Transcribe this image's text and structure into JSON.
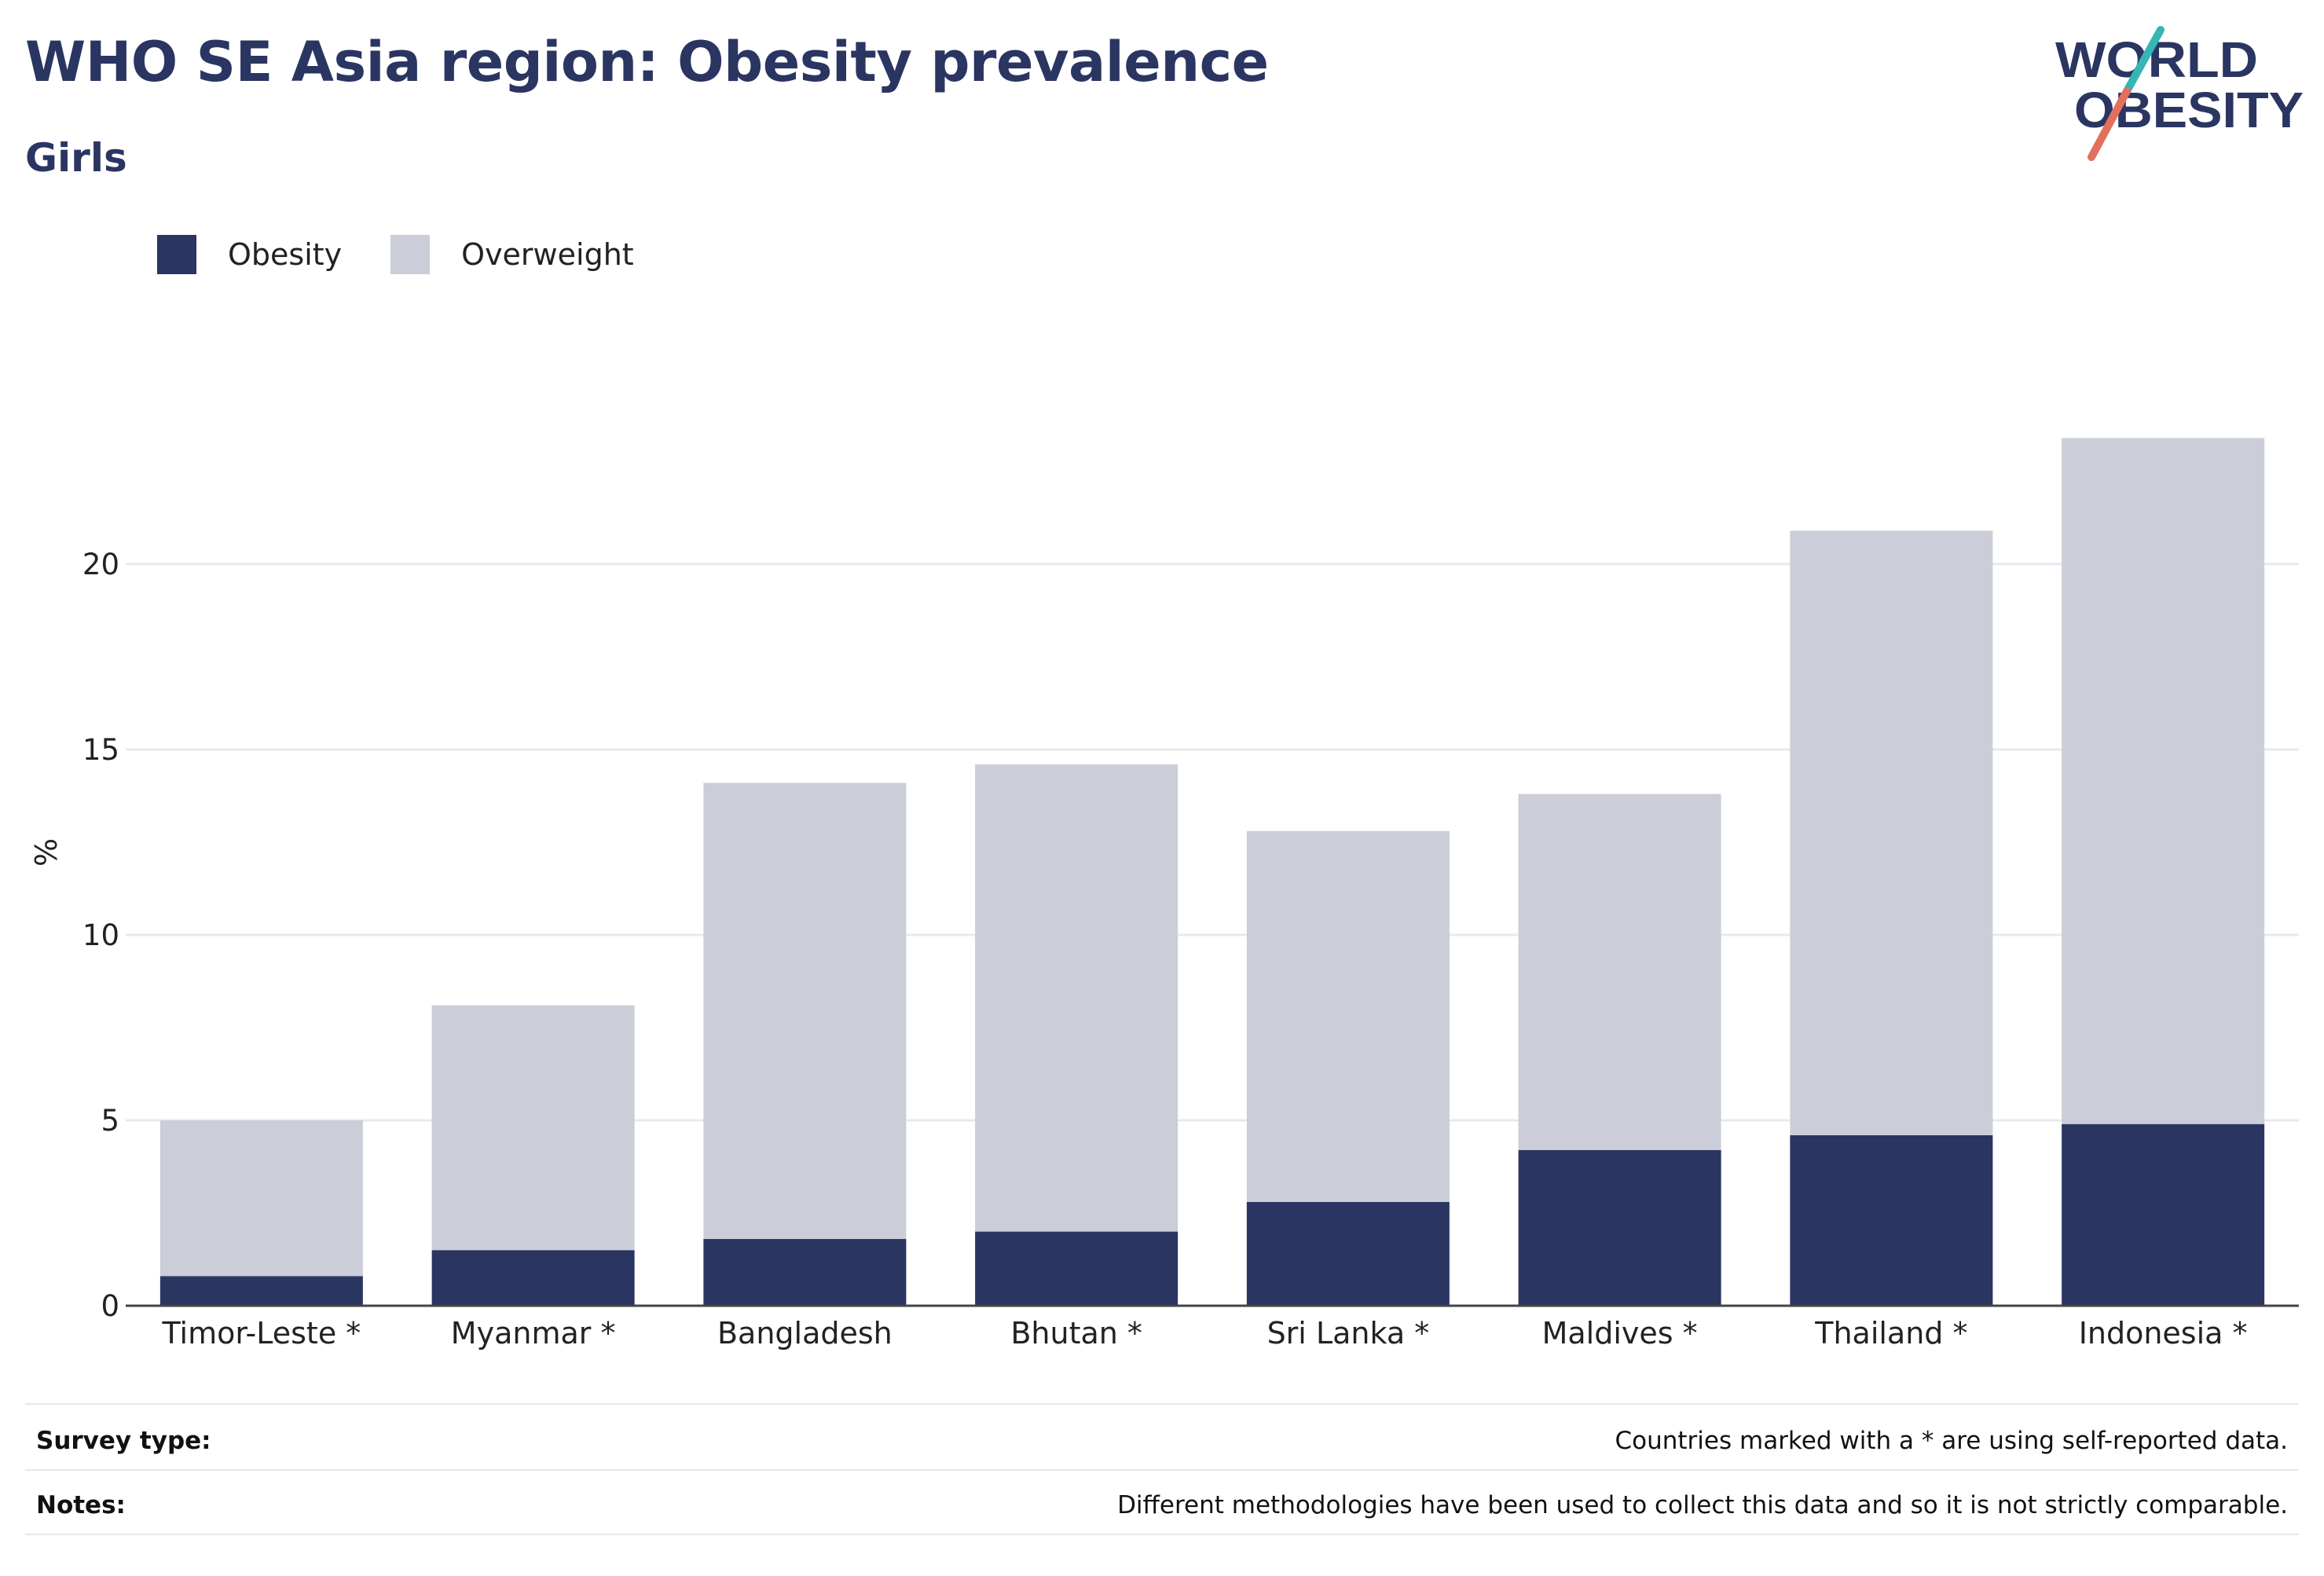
{
  "header": {
    "title": "WHO SE Asia region: Obesity prevalence",
    "subtitle": "Girls",
    "logo_line1": "WORLD",
    "logo_line2": "OBESITY"
  },
  "legend": [
    {
      "label": "Obesity",
      "color": "#2a3561"
    },
    {
      "label": "Overweight",
      "color": "#cbcdd8"
    }
  ],
  "chart_data": {
    "type": "bar",
    "stacked": true,
    "title": "WHO SE Asia region: Obesity prevalence",
    "subtitle": "Girls",
    "xlabel": "",
    "ylabel": "%",
    "ylim": [
      0,
      25
    ],
    "yticks": [
      0,
      5,
      10,
      15,
      20
    ],
    "grid": true,
    "legend_position": "top-left",
    "categories": [
      "Timor-Leste *",
      "Myanmar *",
      "Bangladesh",
      "Bhutan *",
      "Sri Lanka *",
      "Maldives *",
      "Thailand *",
      "Indonesia *"
    ],
    "series": [
      {
        "name": "Obesity",
        "color": "#2a3561",
        "values": [
          0.8,
          1.5,
          1.8,
          2.0,
          2.8,
          4.2,
          4.6,
          4.9
        ]
      },
      {
        "name": "Overweight",
        "color": "#cbcdd8",
        "values": [
          4.2,
          6.6,
          12.3,
          12.6,
          10.0,
          9.6,
          16.3,
          18.5
        ]
      }
    ]
  },
  "footer": {
    "survey_label": "Survey type:",
    "survey_text": "Countries marked with a * are using self-reported data.",
    "notes_label": "Notes:",
    "notes_text": "Different methodologies have been used to collect this data and so it is not strictly comparable."
  }
}
